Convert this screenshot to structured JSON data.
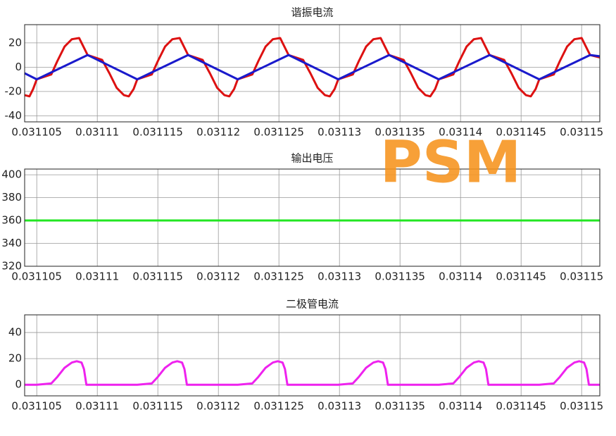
{
  "watermark": "PSM",
  "chart_data": [
    {
      "type": "line",
      "title": "谐振电流",
      "xlim": [
        0.031104,
        0.0311515
      ],
      "xticks": [
        0.031105,
        0.03111,
        0.031115,
        0.03112,
        0.031125,
        0.03113,
        0.031135,
        0.03114,
        0.031145,
        0.03115
      ],
      "ylim": [
        -45,
        35
      ],
      "yticks": [
        -40,
        -20,
        0,
        20
      ],
      "grid": true,
      "series": [
        {
          "color": "#dd1111",
          "x": [
            0.031104,
            0.0311044,
            0.0311047,
            0.031105,
            0.0311062,
            0.0311067,
            0.0311073,
            0.0311079,
            0.0311085,
            0.0311088,
            0.0311092,
            0.0311104,
            0.031111,
            0.0311116,
            0.0311122,
            0.0311126,
            0.031113,
            0.0311133,
            0.0311145,
            0.031115,
            0.0311156,
            0.0311162,
            0.0311168,
            0.0311171,
            0.0311175,
            0.0311187,
            0.0311193,
            0.0311199,
            0.0311205,
            0.0311209,
            0.0311213,
            0.0311216,
            0.0311228,
            0.0311233,
            0.0311239,
            0.0311245,
            0.0311251,
            0.0311254,
            0.0311258,
            0.031127,
            0.0311276,
            0.0311282,
            0.0311288,
            0.0311292,
            0.0311296,
            0.0311299,
            0.0311311,
            0.0311316,
            0.0311322,
            0.0311328,
            0.0311334,
            0.0311337,
            0.0311341,
            0.0311353,
            0.0311359,
            0.0311365,
            0.0311371,
            0.0311375,
            0.0311379,
            0.0311382,
            0.0311394,
            0.0311399,
            0.0311405,
            0.0311411,
            0.0311417,
            0.031142,
            0.0311424,
            0.0311436,
            0.0311442,
            0.0311448,
            0.0311454,
            0.0311458,
            0.0311462,
            0.0311465,
            0.0311477,
            0.0311482,
            0.0311488,
            0.0311494,
            0.03115,
            0.0311503,
            0.0311507,
            0.0311515
          ],
          "values": [
            -23,
            -24,
            -18,
            -10,
            -6,
            5,
            17,
            23,
            24,
            18,
            10,
            6,
            -5,
            -17,
            -23,
            -24,
            -18,
            -10,
            -6,
            5,
            17,
            23,
            24,
            18,
            10,
            6,
            -5,
            -17,
            -23,
            -24,
            -18,
            -10,
            -6,
            5,
            17,
            23,
            24,
            18,
            10,
            6,
            -5,
            -17,
            -23,
            -24,
            -18,
            -10,
            -6,
            5,
            17,
            23,
            24,
            18,
            10,
            6,
            -5,
            -17,
            -23,
            -24,
            -18,
            -10,
            -6,
            5,
            17,
            23,
            24,
            18,
            10,
            6,
            -5,
            -17,
            -23,
            -24,
            -18,
            -10,
            -6,
            5,
            17,
            23,
            24,
            18,
            10,
            8
          ]
        },
        {
          "color": "#1a1acc",
          "x": [
            0.031104,
            0.031105,
            0.0311092,
            0.0311133,
            0.0311175,
            0.0311216,
            0.0311258,
            0.0311299,
            0.0311341,
            0.0311382,
            0.0311424,
            0.0311465,
            0.0311507,
            0.0311515
          ],
          "values": [
            -5,
            -10,
            10,
            -10,
            10,
            -10,
            10,
            -10,
            10,
            -10,
            10,
            -10,
            10,
            9
          ]
        }
      ]
    },
    {
      "type": "line",
      "title": "输出电压",
      "xlim": [
        0.031104,
        0.0311515
      ],
      "xticks": [
        0.031105,
        0.03111,
        0.031115,
        0.03112,
        0.031125,
        0.03113,
        0.031135,
        0.03114,
        0.031145,
        0.03115
      ],
      "ylim": [
        320,
        405
      ],
      "yticks": [
        320,
        340,
        360,
        380,
        400
      ],
      "grid": true,
      "series": [
        {
          "color": "#22e622",
          "x": [
            0.031104,
            0.0311515
          ],
          "values": [
            360,
            360
          ]
        }
      ]
    },
    {
      "type": "line",
      "title": "二极管电流",
      "xlim": [
        0.031104,
        0.0311515
      ],
      "xticks": [
        0.031105,
        0.03111,
        0.031115,
        0.03112,
        0.031125,
        0.03113,
        0.031135,
        0.03114,
        0.031145,
        0.03115
      ],
      "ylim": [
        -8.5,
        53.5
      ],
      "yticks": [
        0,
        20,
        40
      ],
      "grid": true,
      "series": [
        {
          "color": "#ee22ee",
          "x": [
            0.031104,
            0.031105,
            0.0311062,
            0.0311067,
            0.0311073,
            0.0311079,
            0.0311083,
            0.0311087,
            0.0311089,
            0.0311091,
            0.0311133,
            0.0311145,
            0.031115,
            0.0311156,
            0.0311162,
            0.0311166,
            0.031117,
            0.0311172,
            0.0311174,
            0.0311216,
            0.0311228,
            0.0311233,
            0.0311239,
            0.0311245,
            0.0311249,
            0.0311253,
            0.0311255,
            0.0311257,
            0.0311299,
            0.0311311,
            0.0311316,
            0.0311322,
            0.0311328,
            0.0311332,
            0.0311336,
            0.0311338,
            0.031134,
            0.0311382,
            0.0311394,
            0.0311399,
            0.0311405,
            0.0311411,
            0.0311415,
            0.0311419,
            0.0311421,
            0.0311423,
            0.0311465,
            0.0311477,
            0.0311482,
            0.0311488,
            0.0311494,
            0.0311498,
            0.0311502,
            0.0311504,
            0.0311506,
            0.0311515
          ],
          "values": [
            0,
            0,
            1,
            6,
            13,
            17,
            18,
            17,
            12,
            0,
            0,
            1,
            6,
            13,
            17,
            18,
            17,
            12,
            0,
            0,
            1,
            6,
            13,
            17,
            18,
            17,
            12,
            0,
            0,
            1,
            6,
            13,
            17,
            18,
            17,
            12,
            0,
            0,
            1,
            6,
            13,
            17,
            18,
            17,
            12,
            0,
            0,
            1,
            6,
            13,
            17,
            18,
            17,
            12,
            0,
            0
          ]
        }
      ]
    }
  ]
}
